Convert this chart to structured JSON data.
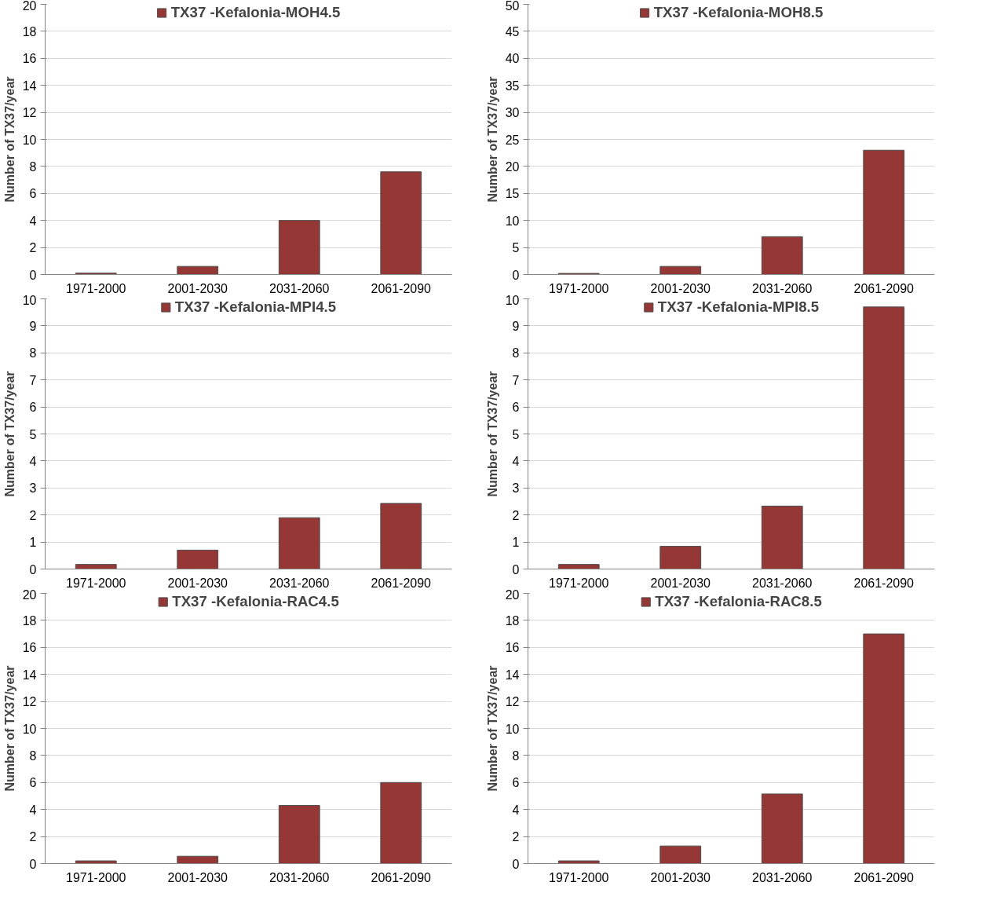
{
  "chart_data": [
    {
      "type": "bar",
      "categories": [
        "1971-2000",
        "2001-2030",
        "2031-2060",
        "2061-2090"
      ],
      "ylabel": "Number of TX37/year",
      "ylim": [
        0,
        20
      ],
      "yticks": [
        0,
        2,
        4,
        6,
        8,
        10,
        12,
        14,
        16,
        18,
        20
      ],
      "grid": "y",
      "legend": "top",
      "series": [
        {
          "name": "TX37 -Kefalonia-MOH4.5",
          "color": "#953735",
          "values": [
            0.1,
            0.6,
            4.0,
            7.6
          ]
        }
      ]
    },
    {
      "type": "bar",
      "categories": [
        "1971-2000",
        "2001-2030",
        "2031-2060",
        "2061-2090"
      ],
      "ylabel": "Number of TX37/year",
      "ylim": [
        0,
        50
      ],
      "yticks": [
        0,
        5,
        10,
        15,
        20,
        25,
        30,
        35,
        40,
        45,
        50
      ],
      "grid": "y",
      "legend": "top",
      "series": [
        {
          "name": "TX37 -Kefalonia-MOH8.5",
          "color": "#953735",
          "values": [
            0.2,
            1.5,
            7.0,
            23
          ]
        }
      ]
    },
    {
      "type": "bar",
      "categories": [
        "1971-2000",
        "2001-2030",
        "2031-2060",
        "2061-2090"
      ],
      "ylabel": "Number of TX37/year",
      "ylim": [
        0,
        10
      ],
      "yticks": [
        0,
        1,
        2,
        3,
        4,
        5,
        6,
        7,
        8,
        9,
        10
      ],
      "grid": "y",
      "legend": "top",
      "series": [
        {
          "name": "TX37 -Kefalonia-MPI4.5",
          "color": "#953735",
          "values": [
            0.17,
            0.7,
            1.9,
            2.43
          ]
        }
      ]
    },
    {
      "type": "bar",
      "categories": [
        "1971-2000",
        "2001-2030",
        "2031-2060",
        "2061-2090"
      ],
      "ylabel": "Number of TX37/year",
      "ylim": [
        0,
        10
      ],
      "yticks": [
        0,
        1,
        2,
        3,
        4,
        5,
        6,
        7,
        8,
        9,
        10
      ],
      "grid": "y",
      "legend": "top",
      "series": [
        {
          "name": "TX37 -Kefalonia-MPI8.5",
          "color": "#953735",
          "values": [
            0.17,
            0.84,
            2.33,
            9.7
          ]
        }
      ]
    },
    {
      "type": "bar",
      "categories": [
        "1971-2000",
        "2001-2030",
        "2031-2060",
        "2061-2090"
      ],
      "ylabel": "Number of TX37/year",
      "ylim": [
        0,
        20
      ],
      "yticks": [
        0,
        2,
        4,
        6,
        8,
        10,
        12,
        14,
        16,
        18,
        20
      ],
      "grid": "y",
      "legend": "top",
      "series": [
        {
          "name": "TX37 -Kefalonia-RAC4.5",
          "color": "#953735",
          "values": [
            0.2,
            0.54,
            4.3,
            6.0
          ]
        }
      ]
    },
    {
      "type": "bar",
      "categories": [
        "1971-2000",
        "2001-2030",
        "2031-2060",
        "2061-2090"
      ],
      "ylabel": "Number of TX37/year",
      "ylim": [
        0,
        20
      ],
      "yticks": [
        0,
        2,
        4,
        6,
        8,
        10,
        12,
        14,
        16,
        18,
        20
      ],
      "grid": "y",
      "legend": "top",
      "series": [
        {
          "name": "TX37 -Kefalonia-RAC8.5",
          "color": "#953735",
          "values": [
            0.2,
            1.3,
            5.15,
            17.0
          ]
        }
      ]
    }
  ]
}
